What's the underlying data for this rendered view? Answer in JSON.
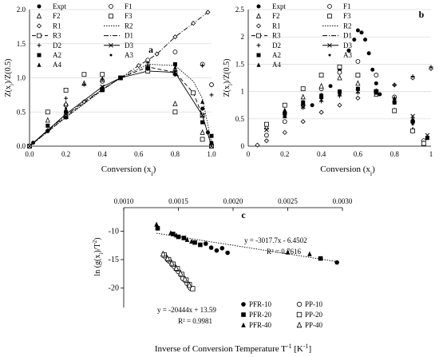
{
  "figure": {
    "panels": [
      "a",
      "b",
      "c"
    ]
  },
  "chart_data": [
    {
      "panel": "a",
      "type": "scatter",
      "xlabel": "Conversion (x",
      "xlabel_sub": "i",
      "xlabel_end": ")",
      "ylabel": "Z(x",
      "ylabel_sub": "i",
      "ylabel_end": ")/Z(0.5)",
      "xlim": [
        0,
        1
      ],
      "ylim": [
        0,
        2
      ],
      "xticks": [
        "0.0",
        "0.2",
        "0.4",
        "0.6",
        "0.8",
        "1.0"
      ],
      "yticks": [
        "0.0",
        "0.5",
        "1.0",
        "1.5",
        "2.0"
      ],
      "legend_position": "top-left",
      "legend": [
        {
          "label": "Expt",
          "glyph": "dot"
        },
        {
          "label": "F1",
          "glyph": "circle"
        },
        {
          "label": "F2",
          "glyph": "triangle-open"
        },
        {
          "label": "F3",
          "glyph": "square-open"
        },
        {
          "label": "R1",
          "glyph": "diamond-open"
        },
        {
          "label": "R2",
          "glyph": "dotted-line"
        },
        {
          "label": "R3",
          "glyph": "dash-square"
        },
        {
          "label": "D1",
          "glyph": "dashdot-line"
        },
        {
          "label": "D2",
          "glyph": "plus"
        },
        {
          "label": "D3",
          "glyph": "x-line"
        },
        {
          "label": "A2",
          "glyph": "square-filled"
        },
        {
          "label": "A3",
          "glyph": "star"
        },
        {
          "label": "A4",
          "glyph": "triangle-filled"
        }
      ],
      "series": [
        {
          "name": "R1",
          "style": "dashdot",
          "marker": "diamond-open",
          "x": [
            0,
            0.1,
            0.2,
            0.3,
            0.4,
            0.5,
            0.6,
            0.65,
            0.7,
            0.8,
            0.9,
            0.98
          ],
          "y": [
            0,
            0.23,
            0.45,
            0.65,
            0.83,
            1.0,
            1.18,
            1.26,
            1.35,
            1.6,
            1.8,
            1.96
          ]
        },
        {
          "name": "R2",
          "style": "dotted",
          "marker": "none",
          "x": [
            0,
            0.2,
            0.4,
            0.5,
            0.65,
            0.8,
            0.9,
            0.95,
            1.0
          ],
          "y": [
            0,
            0.42,
            0.82,
            1.0,
            1.2,
            1.18,
            0.95,
            0.7,
            0.05
          ]
        },
        {
          "name": "R3",
          "style": "dashed",
          "marker": "square-open",
          "x": [
            0,
            0.2,
            0.4,
            0.5,
            0.65,
            0.8,
            0.9,
            0.95,
            1.0
          ],
          "y": [
            0,
            0.43,
            0.83,
            1.0,
            1.16,
            1.08,
            0.78,
            0.45,
            0.0
          ]
        },
        {
          "name": "D3",
          "style": "solid",
          "marker": "x",
          "x": [
            0,
            0.2,
            0.4,
            0.5,
            0.65,
            0.8,
            0.95,
            1.0
          ],
          "y": [
            0,
            0.47,
            0.87,
            1.0,
            1.1,
            1.08,
            0.45,
            0.0
          ]
        },
        {
          "name": "Expt",
          "style": "none",
          "marker": "dot",
          "x": [
            0.02,
            0.1,
            0.2,
            0.4,
            0.5,
            0.65,
            0.8,
            0.95,
            0.98,
            1.0
          ],
          "y": [
            0.05,
            0.22,
            0.42,
            0.85,
            1.0,
            1.15,
            1.05,
            0.55,
            0.2,
            0.05
          ]
        },
        {
          "name": "F1",
          "style": "none",
          "marker": "circle",
          "x": [
            0.2,
            0.4,
            0.65,
            0.8,
            0.95,
            1.0
          ],
          "y": [
            0.6,
            0.95,
            1.26,
            1.38,
            1.2,
            0.9
          ]
        },
        {
          "name": "F2",
          "style": "none",
          "marker": "triangle-open",
          "x": [
            0.1,
            0.2,
            0.3,
            0.4,
            0.65,
            0.8,
            0.95
          ],
          "y": [
            0.38,
            0.62,
            0.92,
            0.98,
            1.15,
            0.62,
            0.2
          ]
        },
        {
          "name": "F3",
          "style": "none",
          "marker": "square-open",
          "x": [
            0.1,
            0.2,
            0.3,
            0.4,
            0.65,
            0.8,
            0.95
          ],
          "y": [
            0.5,
            0.82,
            1.05,
            1.05,
            1.1,
            0.5,
            0.1
          ]
        },
        {
          "name": "D2",
          "style": "none",
          "marker": "plus",
          "x": [
            0.2,
            0.3,
            0.4,
            0.65,
            0.8,
            0.95,
            1.0
          ],
          "y": [
            0.7,
            0.9,
            0.98,
            1.22,
            1.05,
            1.18,
            0.75
          ]
        },
        {
          "name": "A2",
          "style": "none",
          "marker": "square-filled",
          "x": [
            0.1,
            0.2,
            0.4,
            0.65,
            0.8,
            0.95,
            1.0
          ],
          "y": [
            0.3,
            0.5,
            0.82,
            1.14,
            1.2,
            0.35,
            0.15
          ]
        },
        {
          "name": "A3",
          "style": "none",
          "marker": "star",
          "x": [
            0.2,
            0.4,
            0.65,
            0.8,
            0.95
          ],
          "y": [
            0.55,
            0.84,
            1.12,
            1.1,
            0.55
          ]
        },
        {
          "name": "A4",
          "style": "none",
          "marker": "triangle-filled",
          "x": [
            0.2,
            0.4,
            0.65,
            0.8,
            0.95
          ],
          "y": [
            0.52,
            0.86,
            1.16,
            1.15,
            0.65
          ]
        }
      ]
    },
    {
      "panel": "b",
      "type": "scatter",
      "xlabel": "Conversion (x",
      "xlabel_sub": "i",
      "xlabel_end": ")",
      "ylabel": "Z(x",
      "ylabel_sub": "i",
      "ylabel_end": ")/Z(0.5)",
      "xlim": [
        0,
        1
      ],
      "ylim": [
        0,
        2.5
      ],
      "xticks": [
        "0",
        "0.2",
        "0.4",
        "0.6",
        "0.8",
        "1"
      ],
      "yticks": [
        "0",
        "0.5",
        "1",
        "1.5",
        "2",
        "2.5"
      ],
      "legend_position": "top-left",
      "legend": [
        {
          "label": "Expt",
          "glyph": "dot"
        },
        {
          "label": "F1",
          "glyph": "circle"
        },
        {
          "label": "F2",
          "glyph": "triangle-open"
        },
        {
          "label": "F3",
          "glyph": "square-open"
        },
        {
          "label": "R1",
          "glyph": "diamond-open"
        },
        {
          "label": "R2",
          "glyph": "dotted-line"
        },
        {
          "label": "R3",
          "glyph": "dash-square"
        },
        {
          "label": "D1",
          "glyph": "dashdot-line"
        },
        {
          "label": "D2",
          "glyph": "plus"
        },
        {
          "label": "D3",
          "glyph": "x-line"
        },
        {
          "label": "A2",
          "glyph": "square-filled"
        },
        {
          "label": "A3",
          "glyph": "star"
        },
        {
          "label": "A4",
          "glyph": "triangle-filled"
        }
      ],
      "series": [
        {
          "name": "Expt",
          "marker": "dot",
          "x": [
            0.35,
            0.4,
            0.45,
            0.5,
            0.55,
            0.58,
            0.6,
            0.62,
            0.64,
            0.66,
            0.68,
            0.7,
            0.72
          ],
          "y": [
            0.75,
            0.9,
            1.1,
            1.4,
            1.75,
            1.95,
            2.12,
            2.08,
            1.95,
            1.7,
            1.4,
            1.15,
            0.95
          ]
        },
        {
          "name": "F1",
          "marker": "circle",
          "x": [
            0.1,
            0.2,
            0.3,
            0.4,
            0.5,
            0.6,
            0.7,
            0.8,
            0.9,
            0.96
          ],
          "y": [
            0.2,
            0.45,
            0.75,
            1.05,
            1.35,
            1.55,
            1.3,
            0.9,
            0.45,
            0.1
          ]
        },
        {
          "name": "F2",
          "marker": "triangle-open",
          "x": [
            0.1,
            0.2,
            0.3,
            0.4,
            0.5,
            0.6,
            0.7,
            0.8,
            0.9,
            0.96
          ],
          "y": [
            0.35,
            0.65,
            0.9,
            1.1,
            1.25,
            1.15,
            0.95,
            0.65,
            0.3,
            0.05
          ]
        },
        {
          "name": "F3",
          "marker": "square-open",
          "x": [
            0.1,
            0.2,
            0.3,
            0.4,
            0.5,
            0.6,
            0.7,
            0.8,
            0.9,
            0.96
          ],
          "y": [
            0.4,
            0.75,
            1.05,
            1.3,
            1.45,
            1.3,
            1.0,
            0.65,
            0.28,
            0.05
          ]
        },
        {
          "name": "R1",
          "marker": "diamond-open",
          "x": [
            0.05,
            0.1,
            0.2,
            0.3,
            0.4,
            0.5,
            0.6,
            0.7,
            0.8,
            0.9,
            1.0
          ],
          "y": [
            0.02,
            0.1,
            0.25,
            0.45,
            0.62,
            0.75,
            0.88,
            1.0,
            1.12,
            1.25,
            1.42
          ]
        },
        {
          "name": "D2",
          "marker": "plus",
          "x": [
            0.2,
            0.3,
            0.4,
            0.5,
            0.6,
            0.7,
            0.8,
            0.9,
            1.0
          ],
          "y": [
            0.55,
            0.7,
            0.82,
            0.92,
            0.98,
            1.0,
            1.12,
            1.28,
            1.45
          ]
        },
        {
          "name": "D3",
          "marker": "x",
          "x": [
            0.1,
            0.2,
            0.3,
            0.4,
            0.5,
            0.6,
            0.7,
            0.8,
            0.9,
            0.98
          ],
          "y": [
            0.3,
            0.55,
            0.72,
            0.85,
            0.95,
            1.0,
            1.0,
            0.85,
            0.55,
            0.2
          ]
        },
        {
          "name": "A2",
          "marker": "square-filled",
          "x": [
            0.2,
            0.3,
            0.4,
            0.5,
            0.6,
            0.7,
            0.8,
            0.9,
            0.98
          ],
          "y": [
            0.6,
            0.8,
            0.92,
            1.0,
            1.05,
            0.98,
            0.8,
            0.45,
            0.15
          ]
        },
        {
          "name": "A3",
          "marker": "star",
          "x": [
            0.2,
            0.3,
            0.4,
            0.5,
            0.6,
            0.7,
            0.8,
            0.9
          ],
          "y": [
            0.65,
            0.82,
            0.95,
            1.02,
            1.06,
            1.0,
            0.78,
            0.4
          ]
        },
        {
          "name": "A4",
          "marker": "triangle-filled",
          "x": [
            0.2,
            0.3,
            0.4,
            0.5,
            0.6,
            0.7,
            0.8,
            0.9
          ],
          "y": [
            0.55,
            0.78,
            0.9,
            0.98,
            1.05,
            1.02,
            0.88,
            0.5
          ]
        }
      ]
    },
    {
      "panel": "c",
      "type": "scatter",
      "xlabel": "Inverse of Conversion Temperature T",
      "xlabel_sup": "-1",
      "xlabel_end": " [K",
      "xlabel_sup2": "-1",
      "xlabel_end2": "]",
      "ylabel": "ln (g(x",
      "ylabel_sub": "i",
      "ylabel_end": ")/T",
      "ylabel_sup": "2",
      "ylabel_end2": ")",
      "xlim": [
        0.001,
        0.003
      ],
      "ylim": [
        -22,
        -7
      ],
      "xticks": [
        "0.0010",
        "0.0015",
        "0.0020",
        "0.0025",
        "0.0030"
      ],
      "yticks": [
        "-10",
        "-15",
        "-20"
      ],
      "legend_position": "bottom-right",
      "legend": [
        {
          "label": "PFR-10",
          "glyph": "dot"
        },
        {
          "label": "PP-10",
          "glyph": "circle"
        },
        {
          "label": "PFR-20",
          "glyph": "square-filled"
        },
        {
          "label": "PP-20",
          "glyph": "square-open"
        },
        {
          "label": "PFR-40",
          "glyph": "triangle-filled"
        },
        {
          "label": "PP-40",
          "glyph": "triangle-open"
        }
      ],
      "annotations": [
        {
          "text": "y = -3017.7x - 6.4502",
          "near": "upper-fit-line"
        },
        {
          "text": "R² = 0.7616",
          "near": "upper-fit-line"
        },
        {
          "text": "y = -20444x + 13.59",
          "near": "lower-fit-line"
        },
        {
          "text": "R² = 0.9981",
          "near": "lower-fit-line"
        }
      ],
      "fits": [
        {
          "slope": -3017.7,
          "intercept": -6.4502,
          "x_range": [
            0.0013,
            0.00295
          ],
          "style": "dotted"
        },
        {
          "slope": -20444,
          "intercept": 13.59,
          "x_range": [
            0.00138,
            0.00162
          ],
          "style": "solid"
        }
      ],
      "series": [
        {
          "name": "PFR-10",
          "marker": "dot",
          "x": [
            0.00175,
            0.0018,
            0.00185,
            0.0019,
            0.00195,
            0.00295
          ],
          "y": [
            -12.2,
            -12.9,
            -13.4,
            -13.0,
            -13.8,
            -15.5
          ]
        },
        {
          "name": "PFR-20",
          "marker": "square-filled",
          "x": [
            0.00131,
            0.00145,
            0.0015,
            0.00155,
            0.00165,
            0.0017,
            0.0028
          ],
          "y": [
            -9.5,
            -10.5,
            -11.0,
            -11.2,
            -12.0,
            -12.4,
            -14.8
          ]
        },
        {
          "name": "PFR-40",
          "marker": "triangle-filled",
          "x": [
            0.0013,
            0.00143,
            0.00148,
            0.00158,
            0.00162,
            0.0025,
            0.0027
          ],
          "y": [
            -8.8,
            -10.3,
            -10.7,
            -11.5,
            -11.8,
            -13.7,
            -14.0
          ]
        },
        {
          "name": "PP-10",
          "marker": "circle",
          "x": [
            0.00138,
            0.00142,
            0.00146,
            0.0015,
            0.00154,
            0.00158,
            0.00161
          ],
          "y": [
            -14.5,
            -15.3,
            -16.2,
            -17.1,
            -18.3,
            -19.2,
            -20.0
          ]
        },
        {
          "name": "PP-20",
          "marker": "square-open",
          "x": [
            0.00137,
            0.00141,
            0.00145,
            0.00149,
            0.00153,
            0.00157,
            0.0016,
            0.00163
          ],
          "y": [
            -14.2,
            -15.0,
            -15.8,
            -16.6,
            -17.6,
            -18.6,
            -19.4,
            -20.1
          ]
        },
        {
          "name": "PP-40",
          "marker": "triangle-open",
          "x": [
            0.00136,
            0.0014,
            0.00144,
            0.00148,
            0.00152,
            0.00156,
            0.0016
          ],
          "y": [
            -14.0,
            -14.8,
            -15.6,
            -16.5,
            -17.4,
            -18.4,
            -19.5
          ]
        }
      ]
    }
  ]
}
